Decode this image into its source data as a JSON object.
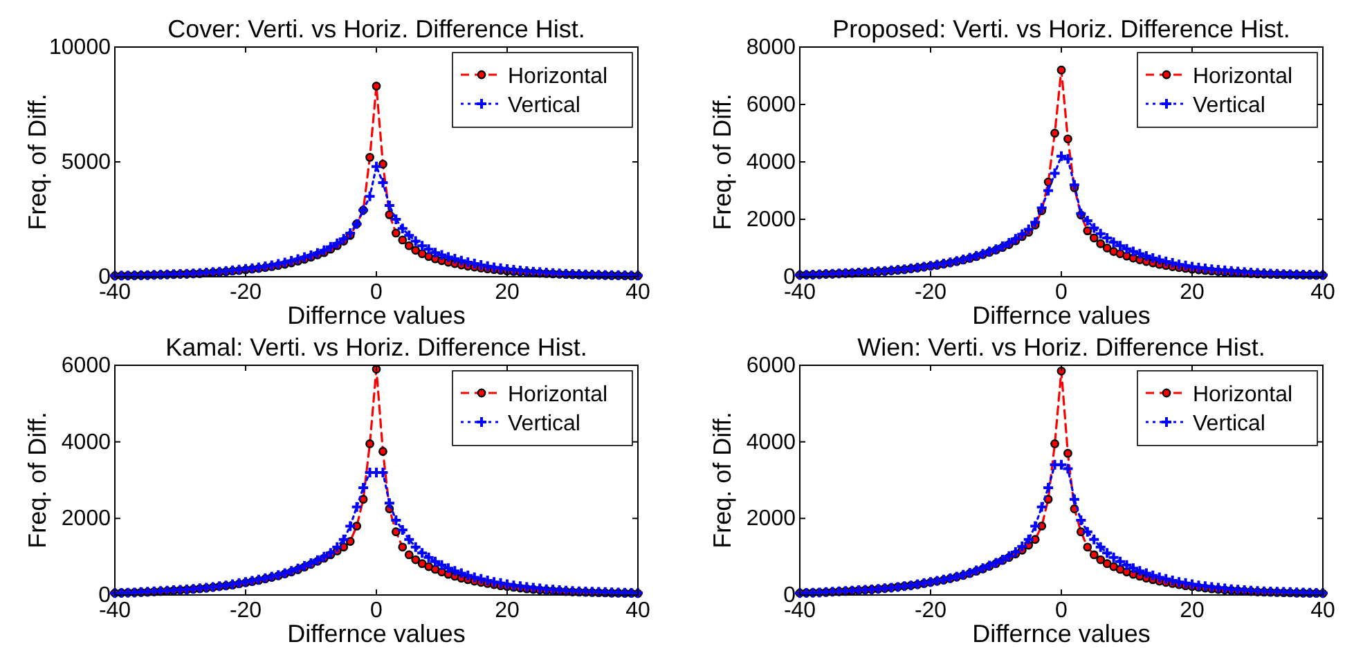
{
  "chart_data": [
    {
      "type": "line",
      "title": "Cover: Verti. vs Horiz. Difference Hist.",
      "xlabel": "Differnce values",
      "ylabel": "Freq. of Diff.",
      "xlim": [
        -40,
        40
      ],
      "ylim": [
        0,
        10000
      ],
      "xticks": [
        -40,
        -20,
        0,
        20,
        40
      ],
      "yticks": [
        0,
        5000,
        10000
      ],
      "legend": "top right",
      "x": [
        -40,
        -39,
        -38,
        -37,
        -36,
        -35,
        -34,
        -33,
        -32,
        -31,
        -30,
        -29,
        -28,
        -27,
        -26,
        -25,
        -24,
        -23,
        -22,
        -21,
        -20,
        -19,
        -18,
        -17,
        -16,
        -15,
        -14,
        -13,
        -12,
        -11,
        -10,
        -9,
        -8,
        -7,
        -6,
        -5,
        -4,
        -3,
        -2,
        -1,
        0,
        1,
        2,
        3,
        4,
        5,
        6,
        7,
        8,
        9,
        10,
        11,
        12,
        13,
        14,
        15,
        16,
        17,
        18,
        19,
        20,
        21,
        22,
        23,
        24,
        25,
        26,
        27,
        28,
        29,
        30,
        31,
        32,
        33,
        34,
        35,
        36,
        37,
        38,
        39,
        40
      ],
      "series": [
        {
          "name": "Horizontal",
          "color": "#ff0000",
          "marker": "circle",
          "line_style": "dashed",
          "values": [
            40,
            45,
            50,
            55,
            60,
            65,
            75,
            85,
            95,
            100,
            110,
            120,
            130,
            140,
            160,
            180,
            200,
            220,
            250,
            270,
            300,
            330,
            360,
            400,
            440,
            490,
            540,
            600,
            680,
            760,
            850,
            950,
            1050,
            1200,
            1350,
            1550,
            1800,
            2300,
            2900,
            5200,
            8300,
            4900,
            2700,
            1900,
            1600,
            1350,
            1150,
            1000,
            880,
            780,
            700,
            630,
            570,
            510,
            460,
            420,
            380,
            340,
            310,
            280,
            250,
            230,
            210,
            190,
            170,
            150,
            140,
            125,
            110,
            100,
            90,
            80,
            75,
            70,
            65,
            60,
            55,
            50,
            45,
            40,
            40
          ]
        },
        {
          "name": "Vertical",
          "color": "#0000ff",
          "marker": "cross",
          "line_style": "dotted",
          "values": [
            45,
            50,
            55,
            60,
            65,
            70,
            80,
            90,
            100,
            110,
            120,
            130,
            140,
            160,
            180,
            200,
            220,
            250,
            280,
            310,
            340,
            370,
            410,
            450,
            500,
            560,
            620,
            690,
            770,
            850,
            930,
            1030,
            1150,
            1300,
            1450,
            1650,
            1900,
            2300,
            2900,
            3500,
            4800,
            4100,
            3100,
            2500,
            2100,
            1800,
            1550,
            1350,
            1200,
            1050,
            950,
            860,
            780,
            700,
            630,
            570,
            510,
            460,
            410,
            370,
            330,
            300,
            270,
            240,
            220,
            200,
            180,
            160,
            145,
            130,
            120,
            110,
            100,
            90,
            80,
            75,
            70,
            65,
            60,
            55,
            50
          ]
        }
      ]
    },
    {
      "type": "line",
      "title": "Proposed: Verti. vs Horiz. Difference Hist.",
      "xlabel": "Differnce values",
      "ylabel": "Freq. of Diff.",
      "xlim": [
        -40,
        40
      ],
      "ylim": [
        0,
        8000
      ],
      "xticks": [
        -40,
        -20,
        0,
        20,
        40
      ],
      "yticks": [
        0,
        2000,
        4000,
        6000,
        8000
      ],
      "legend": "top right",
      "x": [
        -40,
        -39,
        -38,
        -37,
        -36,
        -35,
        -34,
        -33,
        -32,
        -31,
        -30,
        -29,
        -28,
        -27,
        -26,
        -25,
        -24,
        -23,
        -22,
        -21,
        -20,
        -19,
        -18,
        -17,
        -16,
        -15,
        -14,
        -13,
        -12,
        -11,
        -10,
        -9,
        -8,
        -7,
        -6,
        -5,
        -4,
        -3,
        -2,
        -1,
        0,
        1,
        2,
        3,
        4,
        5,
        6,
        7,
        8,
        9,
        10,
        11,
        12,
        13,
        14,
        15,
        16,
        17,
        18,
        19,
        20,
        21,
        22,
        23,
        24,
        25,
        26,
        27,
        28,
        29,
        30,
        31,
        32,
        33,
        34,
        35,
        36,
        37,
        38,
        39,
        40
      ],
      "series": [
        {
          "name": "Horizontal",
          "color": "#ff0000",
          "marker": "circle",
          "line_style": "dashed",
          "values": [
            60,
            65,
            70,
            80,
            90,
            100,
            110,
            120,
            130,
            140,
            150,
            160,
            170,
            190,
            210,
            230,
            250,
            280,
            310,
            340,
            370,
            400,
            440,
            480,
            530,
            580,
            640,
            700,
            770,
            850,
            930,
            1020,
            1120,
            1250,
            1400,
            1550,
            1800,
            2300,
            3300,
            5000,
            7200,
            4800,
            3100,
            2150,
            1600,
            1350,
            1150,
            1000,
            880,
            800,
            720,
            650,
            590,
            530,
            480,
            430,
            390,
            350,
            320,
            290,
            260,
            240,
            220,
            200,
            180,
            160,
            150,
            135,
            120,
            110,
            100,
            90,
            85,
            80,
            75,
            70,
            65,
            60,
            55,
            50,
            50
          ]
        },
        {
          "name": "Vertical",
          "color": "#0000ff",
          "marker": "cross",
          "line_style": "dotted",
          "values": [
            60,
            65,
            75,
            85,
            95,
            105,
            115,
            125,
            135,
            145,
            155,
            170,
            185,
            200,
            220,
            240,
            260,
            290,
            320,
            350,
            380,
            420,
            460,
            500,
            550,
            600,
            660,
            730,
            800,
            880,
            960,
            1060,
            1180,
            1320,
            1480,
            1650,
            1900,
            2400,
            3000,
            3600,
            4200,
            4100,
            3200,
            2200,
            1950,
            1700,
            1500,
            1350,
            1200,
            1080,
            970,
            880,
            800,
            720,
            650,
            590,
            530,
            480,
            430,
            390,
            350,
            320,
            290,
            260,
            240,
            220,
            200,
            180,
            160,
            145,
            130,
            120,
            110,
            100,
            90,
            85,
            80,
            75,
            70,
            65,
            60
          ]
        }
      ]
    },
    {
      "type": "line",
      "title": "Kamal: Verti. vs Horiz. Difference Hist.",
      "xlabel": "Differnce values",
      "ylabel": "Freq. of Diff.",
      "xlim": [
        -40,
        40
      ],
      "ylim": [
        0,
        6000
      ],
      "xticks": [
        -40,
        -20,
        0,
        20,
        40
      ],
      "yticks": [
        0,
        2000,
        4000,
        6000
      ],
      "legend": "top right",
      "x": [
        -40,
        -39,
        -38,
        -37,
        -36,
        -35,
        -34,
        -33,
        -32,
        -31,
        -30,
        -29,
        -28,
        -27,
        -26,
        -25,
        -24,
        -23,
        -22,
        -21,
        -20,
        -19,
        -18,
        -17,
        -16,
        -15,
        -14,
        -13,
        -12,
        -11,
        -10,
        -9,
        -8,
        -7,
        -6,
        -5,
        -4,
        -3,
        -2,
        -1,
        0,
        1,
        2,
        3,
        4,
        5,
        6,
        7,
        8,
        9,
        10,
        11,
        12,
        13,
        14,
        15,
        16,
        17,
        18,
        19,
        20,
        21,
        22,
        23,
        24,
        25,
        26,
        27,
        28,
        29,
        30,
        31,
        32,
        33,
        34,
        35,
        36,
        37,
        38,
        39,
        40
      ],
      "series": [
        {
          "name": "Horizontal",
          "color": "#ff0000",
          "marker": "circle",
          "line_style": "dashed",
          "values": [
            50,
            55,
            60,
            65,
            70,
            75,
            85,
            95,
            105,
            115,
            125,
            135,
            150,
            165,
            180,
            200,
            220,
            240,
            260,
            290,
            320,
            350,
            380,
            420,
            460,
            500,
            550,
            600,
            660,
            730,
            800,
            880,
            960,
            1050,
            1150,
            1250,
            1400,
            1800,
            2500,
            3950,
            5900,
            3750,
            2250,
            1650,
            1250,
            1050,
            920,
            820,
            740,
            670,
            600,
            540,
            490,
            440,
            400,
            360,
            330,
            300,
            270,
            240,
            220,
            200,
            180,
            160,
            145,
            130,
            120,
            110,
            100,
            90,
            80,
            75,
            70,
            65,
            60,
            55,
            50,
            50,
            45,
            45,
            40
          ]
        },
        {
          "name": "Vertical",
          "color": "#0000ff",
          "marker": "cross",
          "line_style": "dotted",
          "values": [
            50,
            55,
            60,
            65,
            75,
            85,
            95,
            105,
            115,
            125,
            135,
            145,
            160,
            175,
            190,
            210,
            230,
            250,
            280,
            310,
            340,
            370,
            400,
            440,
            480,
            520,
            570,
            630,
            690,
            760,
            830,
            910,
            1000,
            1100,
            1250,
            1450,
            1800,
            2300,
            2800,
            3200,
            3200,
            3200,
            2400,
            1950,
            1700,
            1450,
            1250,
            1100,
            980,
            870,
            780,
            700,
            630,
            570,
            510,
            460,
            420,
            380,
            340,
            310,
            280,
            250,
            230,
            210,
            190,
            170,
            150,
            140,
            125,
            115,
            105,
            95,
            90,
            85,
            80,
            75,
            70,
            65,
            60,
            55,
            50
          ]
        }
      ]
    },
    {
      "type": "line",
      "title": "Wien: Verti. vs Horiz. Difference Hist.",
      "xlabel": "Differnce values",
      "ylabel": "Freq. of Diff.",
      "xlim": [
        -40,
        40
      ],
      "ylim": [
        0,
        6000
      ],
      "xticks": [
        -40,
        -20,
        0,
        20,
        40
      ],
      "yticks": [
        0,
        2000,
        4000,
        6000
      ],
      "legend": "top right",
      "x": [
        -40,
        -39,
        -38,
        -37,
        -36,
        -35,
        -34,
        -33,
        -32,
        -31,
        -30,
        -29,
        -28,
        -27,
        -26,
        -25,
        -24,
        -23,
        -22,
        -21,
        -20,
        -19,
        -18,
        -17,
        -16,
        -15,
        -14,
        -13,
        -12,
        -11,
        -10,
        -9,
        -8,
        -7,
        -6,
        -5,
        -4,
        -3,
        -2,
        -1,
        0,
        1,
        2,
        3,
        4,
        5,
        6,
        7,
        8,
        9,
        10,
        11,
        12,
        13,
        14,
        15,
        16,
        17,
        18,
        19,
        20,
        21,
        22,
        23,
        24,
        25,
        26,
        27,
        28,
        29,
        30,
        31,
        32,
        33,
        34,
        35,
        36,
        37,
        38,
        39,
        40
      ],
      "series": [
        {
          "name": "Horizontal",
          "color": "#ff0000",
          "marker": "circle",
          "line_style": "dashed",
          "values": [
            50,
            55,
            60,
            65,
            70,
            80,
            90,
            100,
            110,
            120,
            130,
            140,
            155,
            170,
            190,
            210,
            230,
            250,
            270,
            300,
            330,
            360,
            390,
            430,
            470,
            510,
            560,
            620,
            680,
            750,
            820,
            900,
            980,
            1070,
            1170,
            1300,
            1450,
            1800,
            2500,
            3950,
            5850,
            3700,
            2250,
            1650,
            1250,
            1050,
            920,
            820,
            740,
            670,
            600,
            540,
            490,
            440,
            400,
            360,
            330,
            300,
            270,
            240,
            220,
            200,
            180,
            160,
            145,
            130,
            120,
            110,
            100,
            90,
            80,
            75,
            70,
            65,
            60,
            55,
            50,
            50,
            45,
            45,
            40
          ]
        },
        {
          "name": "Vertical",
          "color": "#0000ff",
          "marker": "cross",
          "line_style": "dotted",
          "values": [
            50,
            55,
            60,
            65,
            75,
            85,
            95,
            105,
            115,
            125,
            135,
            145,
            160,
            175,
            190,
            210,
            230,
            250,
            280,
            310,
            340,
            370,
            400,
            440,
            480,
            530,
            580,
            640,
            700,
            770,
            840,
            920,
            1010,
            1120,
            1270,
            1450,
            1800,
            2300,
            2800,
            3400,
            3400,
            3300,
            2500,
            1950,
            1650,
            1450,
            1250,
            1100,
            980,
            870,
            780,
            700,
            630,
            570,
            510,
            460,
            420,
            380,
            340,
            310,
            280,
            250,
            230,
            210,
            190,
            170,
            150,
            140,
            125,
            115,
            105,
            95,
            90,
            85,
            80,
            75,
            70,
            65,
            60,
            55,
            50
          ]
        }
      ]
    }
  ]
}
